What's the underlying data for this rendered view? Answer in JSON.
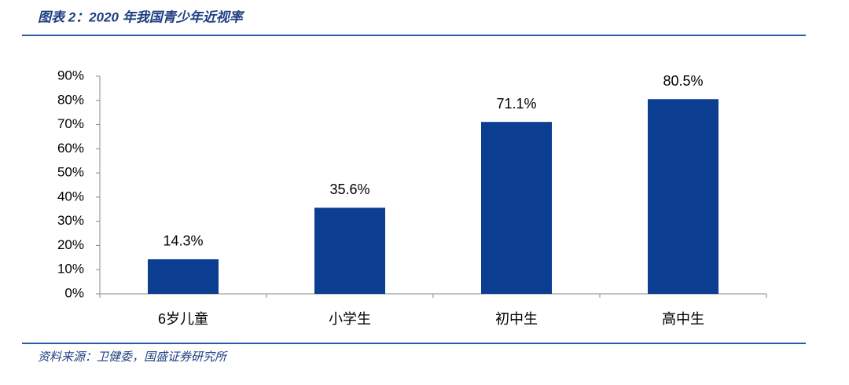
{
  "chart_data": {
    "type": "bar",
    "title": "图表 2：2020 年我国青少年近视率",
    "source": "资料来源：卫健委，国盛证券研究所",
    "categories": [
      "6岁儿童",
      "小学生",
      "初中生",
      "高中生"
    ],
    "values": [
      14.3,
      35.6,
      71.1,
      80.5
    ],
    "value_labels": [
      "14.3%",
      "35.6%",
      "71.1%",
      "80.5%"
    ],
    "color": "#0b3d91",
    "ylim": [
      0,
      90
    ],
    "yticks": [
      {
        "value": 0,
        "label": "0%"
      },
      {
        "value": 10,
        "label": "10%"
      },
      {
        "value": 20,
        "label": "20%"
      },
      {
        "value": 30,
        "label": "30%"
      },
      {
        "value": 40,
        "label": "40%"
      },
      {
        "value": 50,
        "label": "50%"
      },
      {
        "value": 60,
        "label": "60%"
      },
      {
        "value": 70,
        "label": "70%"
      },
      {
        "value": 80,
        "label": "80%"
      },
      {
        "value": 90,
        "label": "90%"
      }
    ],
    "grid": false
  }
}
